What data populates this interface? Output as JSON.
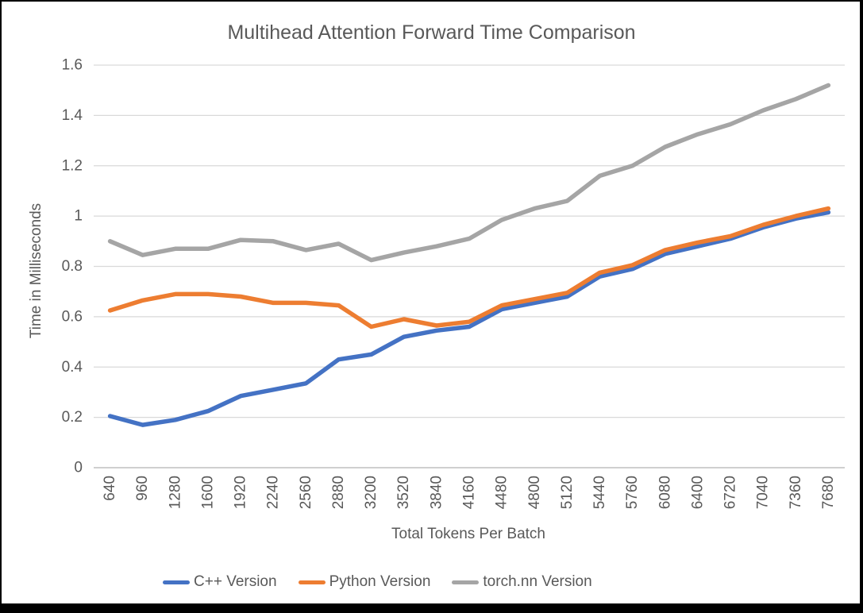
{
  "window": {
    "background": "#000000",
    "chart_background": "#FFFFFF"
  },
  "chart_data": {
    "type": "line",
    "title": "Multihead Attention Forward Time Comparison",
    "xlabel": "Total Tokens Per Batch",
    "ylabel": "Time in Milliseconds",
    "ylim": [
      0,
      1.6
    ],
    "ytick_values": [
      0,
      0.2,
      0.4,
      0.6,
      0.8,
      1,
      1.2,
      1.4,
      1.6
    ],
    "ytick_labels": [
      "0",
      "0.2",
      "0.4",
      "0.6",
      "0.8",
      "1",
      "1.2",
      "1.4",
      "1.6"
    ],
    "grid": true,
    "legend_position": "bottom",
    "xtick_rotation_degrees": 90,
    "categories": [
      640,
      960,
      1280,
      1600,
      1920,
      2240,
      2560,
      2880,
      3200,
      3520,
      3840,
      4160,
      4480,
      4800,
      5120,
      5440,
      5760,
      6080,
      6400,
      6720,
      7040,
      7360,
      7680
    ],
    "series": [
      {
        "name": "C++ Version",
        "color": "#4472C4",
        "values": [
          0.205,
          0.17,
          0.19,
          0.225,
          0.285,
          0.31,
          0.335,
          0.43,
          0.45,
          0.52,
          0.545,
          0.56,
          0.63,
          0.655,
          0.68,
          0.76,
          0.79,
          0.85,
          0.88,
          0.91,
          0.955,
          0.99,
          1.015
        ]
      },
      {
        "name": "Python Version",
        "color": "#ED7D31",
        "values": [
          0.625,
          0.665,
          0.69,
          0.69,
          0.68,
          0.655,
          0.655,
          0.645,
          0.56,
          0.59,
          0.565,
          0.58,
          0.645,
          0.67,
          0.695,
          0.775,
          0.805,
          0.865,
          0.895,
          0.92,
          0.965,
          1.0,
          1.03
        ]
      },
      {
        "name": "torch.nn Version",
        "color": "#A5A5A5",
        "values": [
          0.9,
          0.845,
          0.87,
          0.87,
          0.905,
          0.9,
          0.865,
          0.89,
          0.825,
          0.855,
          0.88,
          0.91,
          0.985,
          1.03,
          1.06,
          1.16,
          1.2,
          1.275,
          1.325,
          1.365,
          1.42,
          1.465,
          1.52
        ]
      }
    ],
    "colors": {
      "gridline": "#D9D9D9",
      "axis_line": "#BFBFBF",
      "text": "#595959"
    }
  }
}
